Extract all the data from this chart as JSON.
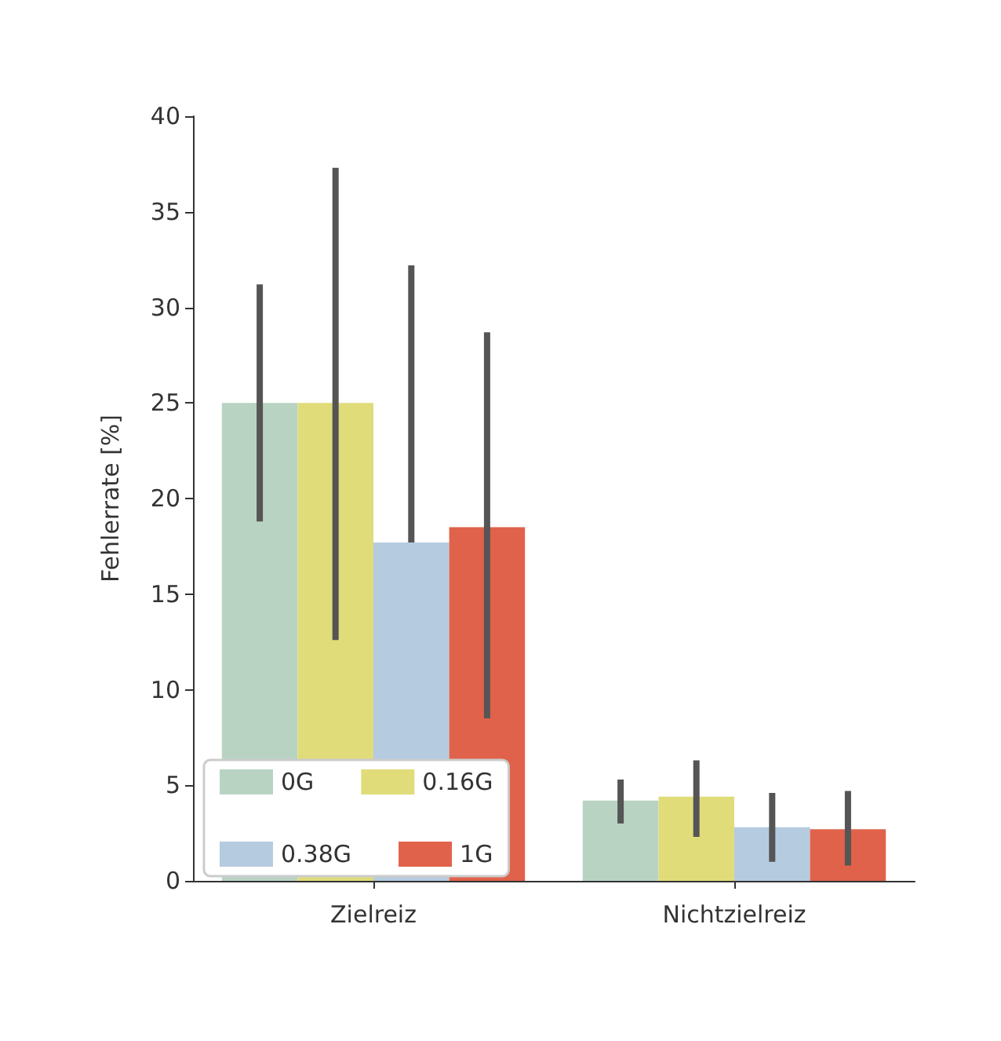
{
  "chart_data": {
    "type": "bar",
    "ylabel": "Fehlerrate [%]",
    "categories": [
      "Zielreiz",
      "Nichtzielreiz"
    ],
    "ylim": [
      0,
      40
    ],
    "yticks": [
      0,
      5,
      10,
      15,
      20,
      25,
      30,
      35,
      40
    ],
    "grid": false,
    "legend": "bottom left",
    "series": [
      {
        "name": "0G",
        "color": "#b9d3c2",
        "values": [
          25,
          4.2
        ],
        "errors": [
          [
            18.8,
            31.2
          ],
          [
            3.0,
            5.3
          ]
        ]
      },
      {
        "name": "0.16G",
        "color": "#e0dc7a",
        "values": [
          25,
          4.4
        ],
        "errors": [
          [
            12.6,
            37.3
          ],
          [
            2.3,
            6.3
          ]
        ]
      },
      {
        "name": "0.38G",
        "color": "#b5cbe0",
        "values": [
          17.7,
          2.8
        ],
        "errors": [
          [
            17.7,
            32.2
          ],
          [
            1.0,
            4.6
          ]
        ]
      },
      {
        "name": "1G",
        "color": "#e0624a",
        "values": [
          18.5,
          2.7
        ],
        "errors": [
          [
            8.5,
            28.7
          ],
          [
            0.8,
            4.7
          ]
        ]
      }
    ]
  }
}
